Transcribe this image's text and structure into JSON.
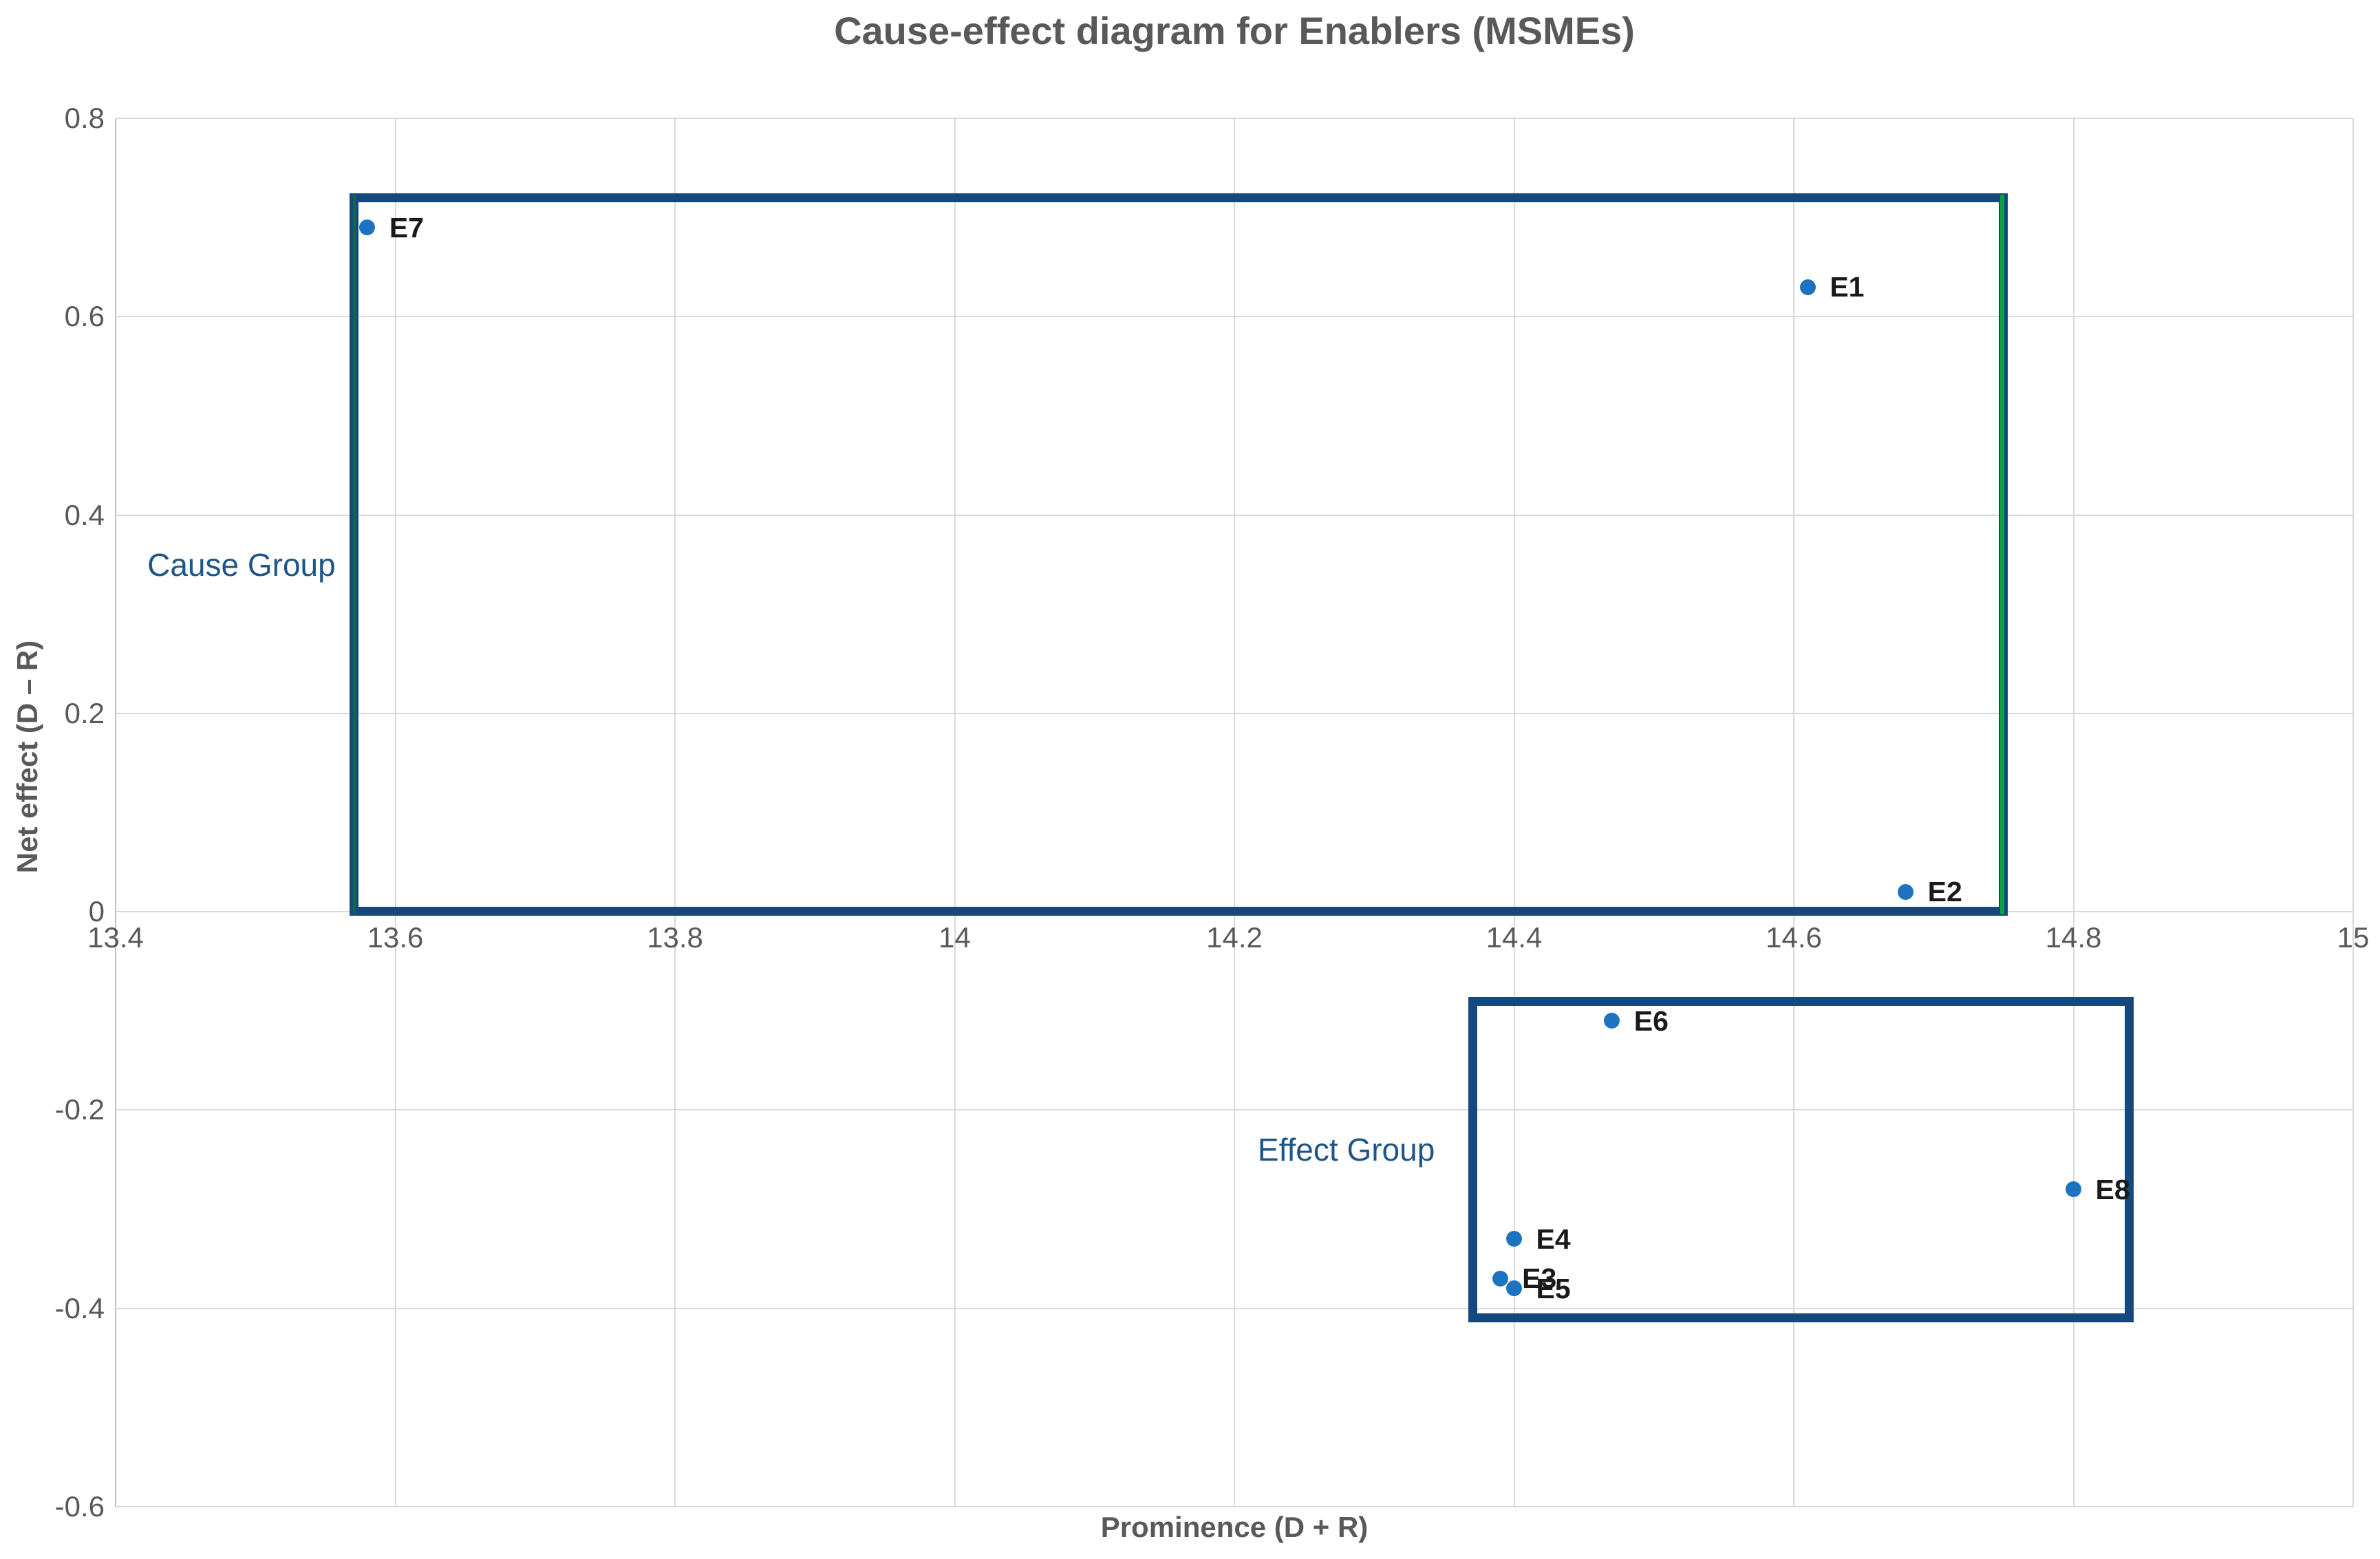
{
  "chart": {
    "title": "Cause-effect diagram for Enablers (MSMEs)",
    "x_axis_title": "Prominence (D + R)",
    "y_axis_title": "Net effect (D – R)"
  },
  "colors": {
    "marker_blue": "#1d73c0",
    "box_border_blue": "#15497c",
    "box_accent_green": "#0ba23d",
    "box_accent_green_dark": "#0e6b40",
    "group_label_blue": "#1d5588",
    "title_gray": "#595959",
    "tick_gray": "#595959",
    "gridline_gray": "#d9d9d9",
    "axis_line_gray": "#bfbfbf",
    "point_label_black": "#1a1a1a"
  },
  "chart_data": {
    "type": "scatter",
    "title": "Cause-effect diagram for Enablers (MSMEs)",
    "xlabel": "Prominence (D + R)",
    "ylabel": "Net effect (D – R)",
    "xlim": [
      13.4,
      15
    ],
    "ylim": [
      -0.6,
      0.8
    ],
    "x_tick_values": [
      13.4,
      13.6,
      13.8,
      14,
      14.2,
      14.4,
      14.6,
      14.8,
      15
    ],
    "x_tick_labels": [
      "13.4",
      "13.6",
      "13.8",
      "14",
      "14.2",
      "14.4",
      "14.6",
      "14.8",
      "15"
    ],
    "y_tick_values": [
      0.8,
      0.6,
      0.4,
      0.2,
      0,
      -0.2,
      -0.4,
      -0.6
    ],
    "y_tick_labels": [
      "0.8",
      "0.6",
      "0.4",
      "0.2",
      "0",
      "-0.2",
      "-0.4",
      "-0.6"
    ],
    "grid": true,
    "legend": "none",
    "series": [
      {
        "name": "Enablers",
        "points": [
          {
            "label": "E1",
            "x": 14.61,
            "y": 0.63
          },
          {
            "label": "E2",
            "x": 14.68,
            "y": 0.02
          },
          {
            "label": "E3",
            "x": 14.39,
            "y": -0.37
          },
          {
            "label": "E4",
            "x": 14.4,
            "y": -0.33
          },
          {
            "label": "E5",
            "x": 14.4,
            "y": -0.38
          },
          {
            "label": "E6",
            "x": 14.47,
            "y": -0.11
          },
          {
            "label": "E7",
            "x": 13.58,
            "y": 0.69
          },
          {
            "label": "E8",
            "x": 14.8,
            "y": -0.28
          }
        ]
      }
    ],
    "annotations": {
      "group_boxes": [
        {
          "name": "Cause Group",
          "x0": 13.57,
          "y0": 0.0,
          "x1": 14.75,
          "y1": 0.72,
          "label_x": 13.49,
          "label_y": 0.35,
          "green_accent": true
        },
        {
          "name": "Effect Group",
          "x0": 14.37,
          "y0": -0.41,
          "x1": 14.84,
          "y1": -0.09,
          "label_x": 14.28,
          "label_y": -0.24,
          "green_accent": false
        }
      ]
    }
  }
}
